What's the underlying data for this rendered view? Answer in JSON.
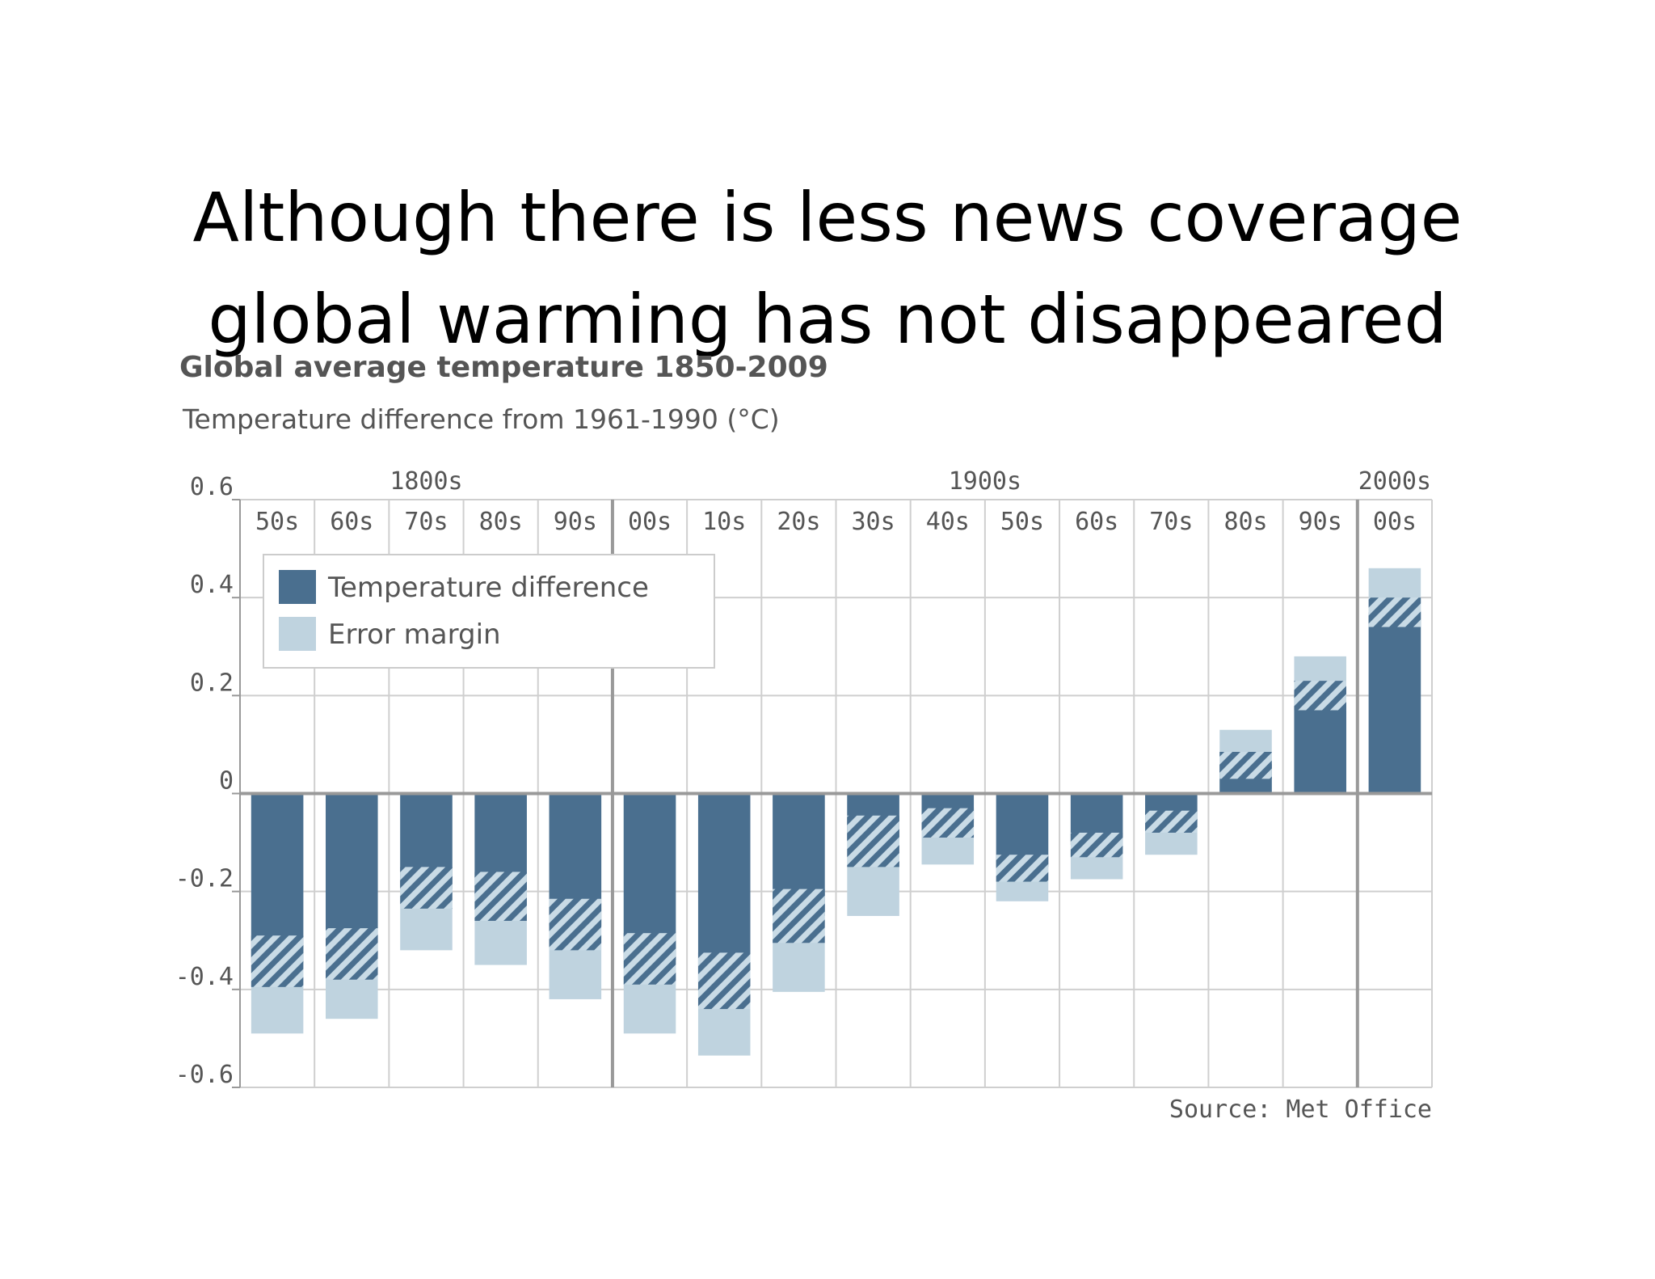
{
  "slide": {
    "title_line1": "Although there is less news coverage",
    "title_line2": "global warming has not disappeared"
  },
  "chart_data": {
    "type": "bar",
    "title": "Global average temperature 1850-2009",
    "subtitle": "Temperature difference from 1961-1990 (°C)",
    "source": "Source: Met Office",
    "categories": [
      "50s",
      "60s",
      "70s",
      "80s",
      "90s",
      "00s",
      "10s",
      "20s",
      "30s",
      "40s",
      "50s",
      "60s",
      "70s",
      "80s",
      "90s",
      "00s"
    ],
    "centuries": [
      {
        "label": "1800s",
        "first_index": 0,
        "last_index": 4
      },
      {
        "label": "1900s",
        "first_index": 5,
        "last_index": 14
      },
      {
        "label": "2000s",
        "first_index": 15,
        "last_index": 15
      }
    ],
    "series": [
      {
        "name": "Temperature difference",
        "color": "#4a6f8f",
        "values": [
          -0.345,
          -0.33,
          -0.195,
          -0.21,
          -0.27,
          -0.34,
          -0.385,
          -0.25,
          -0.095,
          -0.06,
          -0.15,
          -0.105,
          -0.055,
          0.06,
          0.2,
          0.37
        ]
      },
      {
        "name": "Error margin",
        "color": "#bfd3df",
        "low": [
          -0.49,
          -0.46,
          -0.32,
          -0.35,
          -0.42,
          -0.49,
          -0.535,
          -0.405,
          -0.25,
          -0.145,
          -0.22,
          -0.175,
          -0.125,
          0,
          0,
          0
        ],
        "high": [
          0,
          0,
          0,
          0,
          0,
          0,
          0,
          0,
          0,
          0,
          0,
          0,
          0,
          0.13,
          0.28,
          0.46
        ]
      }
    ],
    "hatched_band": {
      "low": [
        -0.395,
        -0.38,
        -0.235,
        -0.26,
        -0.32,
        -0.39,
        -0.44,
        -0.305,
        -0.15,
        -0.09,
        -0.18,
        -0.13,
        -0.08,
        0.03,
        0.17,
        0.34
      ],
      "high": [
        -0.29,
        -0.275,
        -0.15,
        -0.16,
        -0.215,
        -0.285,
        -0.325,
        -0.195,
        -0.045,
        -0.03,
        -0.125,
        -0.08,
        -0.035,
        0.085,
        0.23,
        0.4
      ]
    },
    "yticks": [
      "0.6",
      "0.4",
      "0.2",
      "0",
      "-0.2",
      "-0.4",
      "-0.6"
    ],
    "ylim": [
      -0.6,
      0.6
    ],
    "grid": true,
    "legend_position": "top-left"
  }
}
